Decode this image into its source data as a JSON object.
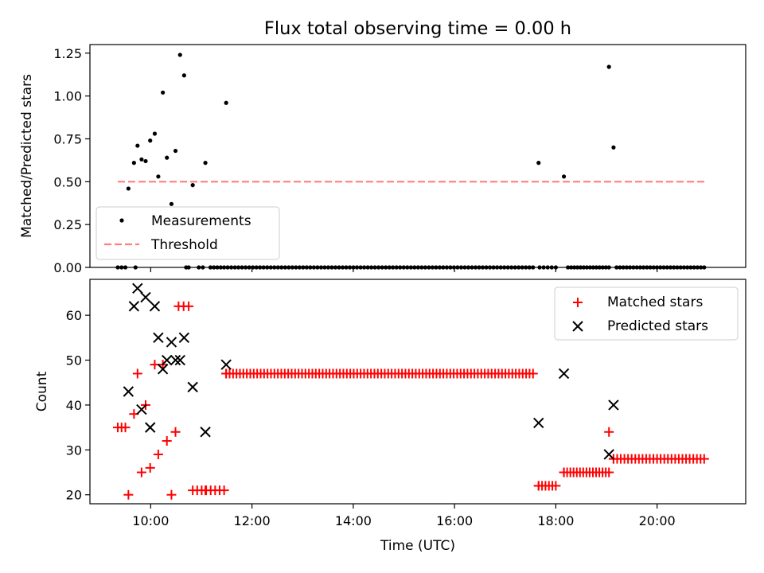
{
  "figure": {
    "title": "Flux total observing time = 0.00 h"
  },
  "chart_data": [
    {
      "type": "scatter",
      "panel": "top",
      "ylabel": "Matched/Predicted stars",
      "xlabel": "",
      "xlim": [
        8.8,
        21.75
      ],
      "ylim": [
        0.0,
        1.3
      ],
      "yticks": [
        0.0,
        0.25,
        0.5,
        0.75,
        1.0,
        1.25
      ],
      "ytick_labels": [
        "0.00",
        "0.25",
        "0.50",
        "0.75",
        "1.00",
        "1.25"
      ],
      "legend_position": "lower-left",
      "legend": [
        "Measurements",
        "Threshold"
      ],
      "colors": {
        "measurements": "#000000",
        "threshold": "#ff7f7f"
      },
      "threshold": {
        "value": 0.5,
        "x_start": 9.35,
        "x_end": 20.95
      },
      "measurements": [
        [
          9.56,
          0.46
        ],
        [
          9.67,
          0.61
        ],
        [
          9.74,
          0.71
        ],
        [
          9.82,
          0.63
        ],
        [
          9.9,
          0.62
        ],
        [
          9.99,
          0.74
        ],
        [
          10.08,
          0.78
        ],
        [
          10.15,
          0.53
        ],
        [
          10.24,
          1.02
        ],
        [
          10.32,
          0.64
        ],
        [
          10.41,
          0.37
        ],
        [
          10.49,
          0.68
        ],
        [
          10.58,
          1.24
        ],
        [
          10.66,
          1.12
        ],
        [
          10.83,
          0.48
        ],
        [
          11.08,
          0.61
        ],
        [
          11.49,
          0.96
        ],
        [
          17.66,
          0.61
        ],
        [
          18.16,
          0.53
        ],
        [
          19.05,
          1.17
        ],
        [
          19.14,
          0.7
        ]
      ],
      "zero_points": {
        "note": "dense row of measurements at value 0.00",
        "ranges": [
          [
            9.35,
            9.5,
            3
          ],
          [
            9.7,
            9.7,
            1
          ],
          [
            10.7,
            10.75,
            2
          ],
          [
            10.95,
            11.03,
            2
          ],
          [
            11.18,
            11.45,
            5
          ],
          [
            11.52,
            17.55,
            86
          ],
          [
            17.68,
            18.0,
            5
          ],
          [
            18.24,
            19.05,
            14
          ],
          [
            19.2,
            20.93,
            27
          ]
        ],
        "value": 0.0
      }
    },
    {
      "type": "scatter",
      "panel": "bottom",
      "xlabel": "Time (UTC)",
      "ylabel": "Count",
      "xlim": [
        8.8,
        21.75
      ],
      "ylim": [
        18,
        68
      ],
      "yticks": [
        20,
        30,
        40,
        50,
        60
      ],
      "xticks": [
        10,
        12,
        14,
        16,
        18,
        20
      ],
      "xtick_labels": [
        "10:00",
        "12:00",
        "14:00",
        "16:00",
        "18:00",
        "20:00"
      ],
      "legend_position": "upper-right",
      "legend": [
        "Matched stars",
        "Predicted stars"
      ],
      "colors": {
        "matched": "#ff0000",
        "predicted": "#000000"
      },
      "matched": {
        "points": [
          [
            9.56,
            20
          ],
          [
            9.67,
            38
          ],
          [
            9.74,
            47
          ],
          [
            9.82,
            25
          ],
          [
            9.9,
            40
          ],
          [
            9.99,
            26
          ],
          [
            10.08,
            49
          ],
          [
            10.15,
            29
          ],
          [
            10.24,
            49
          ],
          [
            10.32,
            32
          ],
          [
            10.41,
            20
          ],
          [
            10.49,
            34
          ],
          [
            11.08,
            21
          ],
          [
            11.49,
            47
          ],
          [
            17.66,
            22
          ],
          [
            18.16,
            25
          ],
          [
            19.05,
            34
          ],
          [
            19.14,
            28
          ]
        ],
        "runs": [
          [
            9.35,
            9.5,
            35,
            3
          ],
          [
            10.55,
            10.75,
            62,
            3
          ],
          [
            10.83,
            11.45,
            21,
            8
          ],
          [
            11.49,
            17.55,
            47,
            90
          ],
          [
            17.66,
            18.0,
            22,
            6
          ],
          [
            18.16,
            19.05,
            25,
            15
          ],
          [
            19.14,
            20.93,
            28,
            26
          ]
        ]
      },
      "predicted": {
        "points": [
          [
            9.56,
            43
          ],
          [
            9.67,
            62
          ],
          [
            9.74,
            66
          ],
          [
            9.82,
            39
          ],
          [
            9.9,
            64
          ],
          [
            9.99,
            35
          ],
          [
            10.08,
            62
          ],
          [
            10.15,
            55
          ],
          [
            10.24,
            48
          ],
          [
            10.32,
            50
          ],
          [
            10.41,
            54
          ],
          [
            10.49,
            50
          ],
          [
            10.58,
            50
          ],
          [
            10.66,
            55
          ],
          [
            10.83,
            44
          ],
          [
            11.08,
            34
          ],
          [
            11.49,
            49
          ],
          [
            17.66,
            36
          ],
          [
            18.16,
            47
          ],
          [
            19.05,
            29
          ],
          [
            19.14,
            40
          ]
        ]
      }
    }
  ]
}
